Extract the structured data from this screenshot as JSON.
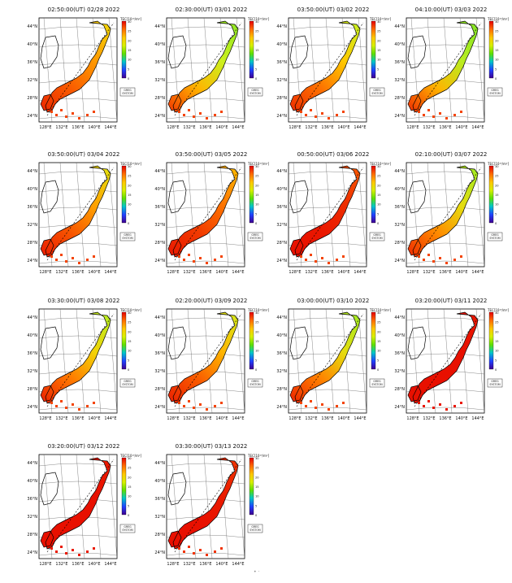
{
  "colorbar": {
    "label": "TEC[10¹⁶/m²]",
    "ticks": [
      "30",
      "25",
      "20",
      "15",
      "10",
      "5",
      "0"
    ],
    "stops": [
      "#e60000",
      "#ff6a00",
      "#ffc800",
      "#d8f000",
      "#60e000",
      "#00c8c8",
      "#2040ff",
      "#400090"
    ]
  },
  "legend_box": [
    "GREG",
    "SYSTOM"
  ],
  "axes": {
    "lat_ticks": [
      "44°N",
      "40°N",
      "36°N",
      "32°N",
      "28°N",
      "24°N"
    ],
    "lon_ticks": [
      "128°E",
      "132°E",
      "136°E",
      "140°E",
      "144°E"
    ]
  },
  "panels": [
    {
      "title": "02:50:00(UT) 02/28 2022",
      "levels": [
        0.45,
        0.62,
        0.78,
        0.92
      ]
    },
    {
      "title": "02:30:00(UT) 03/01 2022",
      "levels": [
        0.15,
        0.3,
        0.55,
        0.85
      ]
    },
    {
      "title": "03:50:00(UT) 03/02 2022",
      "levels": [
        0.3,
        0.5,
        0.72,
        0.9
      ]
    },
    {
      "title": "04:10:00(UT) 03/03 2022",
      "levels": [
        0.12,
        0.25,
        0.55,
        0.88
      ]
    },
    {
      "title": "03:50:00(UT) 03/04 2022",
      "levels": [
        0.4,
        0.6,
        0.8,
        0.95
      ]
    },
    {
      "title": "03:50:00(UT) 03/05 2022",
      "levels": [
        0.55,
        0.72,
        0.88,
        0.97
      ]
    },
    {
      "title": "00:50:00(UT) 03/06 2022",
      "levels": [
        0.8,
        0.92,
        0.98,
        1.0
      ]
    },
    {
      "title": "02:10:00(UT) 03/07 2022",
      "levels": [
        0.2,
        0.4,
        0.65,
        0.9
      ]
    },
    {
      "title": "03:30:00(UT) 03/08 2022",
      "levels": [
        0.25,
        0.45,
        0.7,
        0.93
      ]
    },
    {
      "title": "02:20:00(UT) 03/09 2022",
      "levels": [
        0.35,
        0.55,
        0.78,
        0.94
      ]
    },
    {
      "title": "03:00:00(UT) 03/10 2022",
      "levels": [
        0.2,
        0.4,
        0.68,
        0.92
      ]
    },
    {
      "title": "03:20:00(UT) 03/11 2022",
      "levels": [
        0.98,
        1.0,
        1.0,
        1.0
      ]
    },
    {
      "title": "03:20:00(UT) 03/12 2022",
      "levels": [
        0.97,
        1.0,
        1.0,
        1.0
      ]
    },
    {
      "title": "03:30:00(UT) 03/13 2022",
      "levels": [
        0.9,
        0.97,
        1.0,
        1.0
      ]
    }
  ]
}
